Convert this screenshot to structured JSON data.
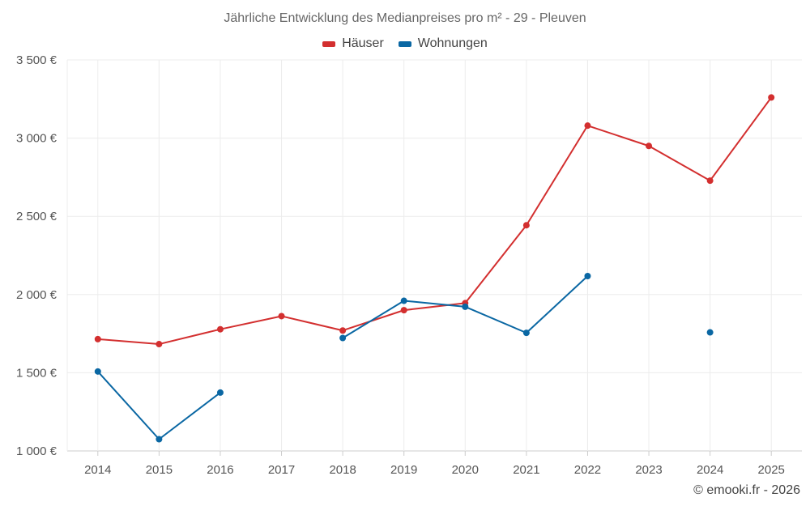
{
  "chart_data": {
    "type": "line",
    "title": "Jährliche Entwicklung des Medianpreises pro m² - 29 - Pleuven",
    "xlabel": "",
    "ylabel": "",
    "categories": [
      "2014",
      "2015",
      "2016",
      "2017",
      "2018",
      "2019",
      "2020",
      "2021",
      "2022",
      "2023",
      "2024",
      "2025"
    ],
    "ylim": [
      1000,
      3500
    ],
    "yticks": [
      1000,
      1500,
      2000,
      2500,
      3000,
      3500
    ],
    "ytick_labels": [
      "1 000 €",
      "1 500 €",
      "2 000 €",
      "2 500 €",
      "3 000 €",
      "3 500 €"
    ],
    "grid": true,
    "legend_position": "top-center",
    "series": [
      {
        "name": "Häuser",
        "color": "#d32f2f",
        "values": [
          1715,
          1683,
          1778,
          1862,
          1770,
          1900,
          1945,
          2443,
          3080,
          2950,
          2728,
          3260
        ]
      },
      {
        "name": "Wohnungen",
        "color": "#0a67a3",
        "values": [
          1508,
          1075,
          1373,
          null,
          1722,
          1960,
          1922,
          1755,
          2118,
          null,
          1758,
          null
        ]
      }
    ]
  },
  "credit": "© emooki.fr - 2026"
}
